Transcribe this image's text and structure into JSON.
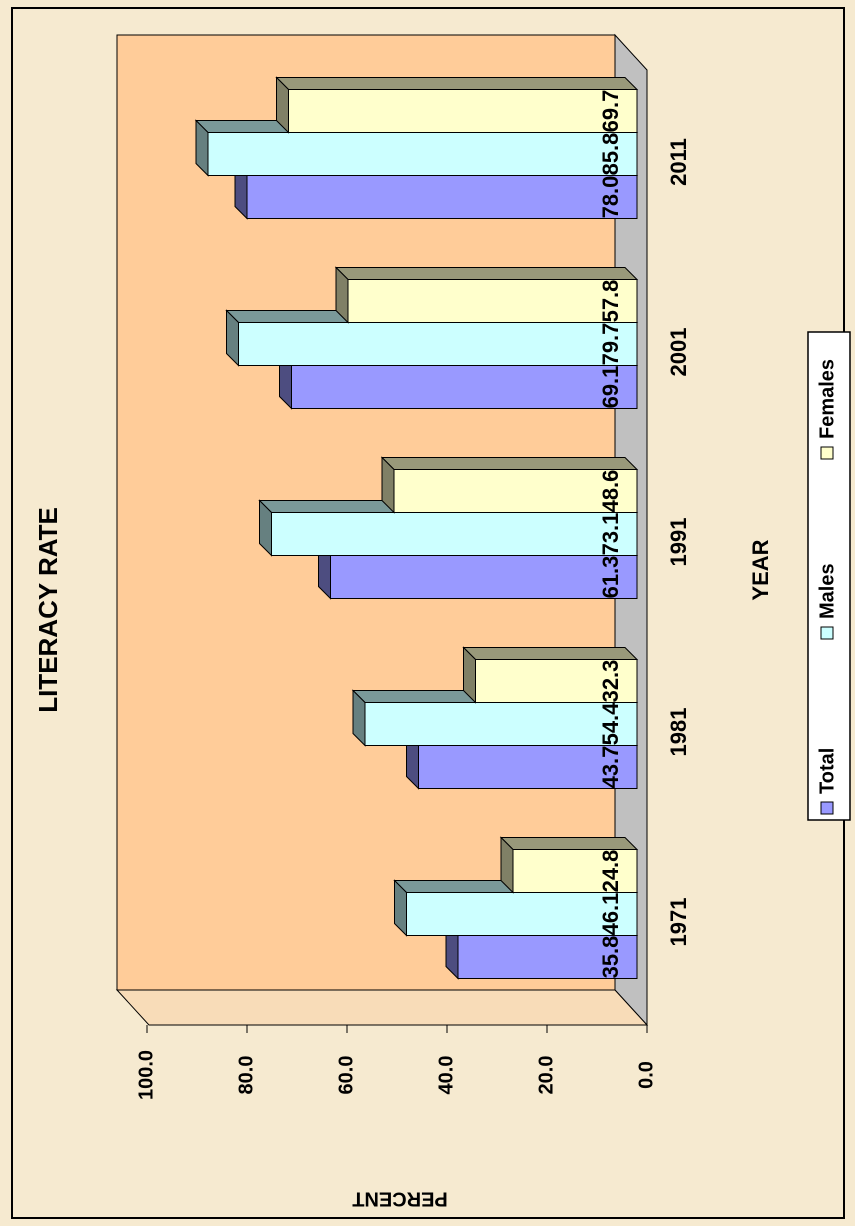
{
  "chart_data": {
    "type": "bar3d_horizontal",
    "title": "LITERACY RATE",
    "x_label": "YEAR",
    "y_label": "PERCENT",
    "categories": [
      "1971",
      "1981",
      "1991",
      "2001",
      "2011"
    ],
    "series": [
      {
        "name": "Total",
        "color": "#9999ff",
        "values": [
          35.8,
          43.7,
          61.3,
          69.1,
          78
        ],
        "value_labels": [
          "35.8",
          "43.7",
          "61.3",
          "69.1",
          "78.0"
        ]
      },
      {
        "name": "Males",
        "color": "#ccffff",
        "values": [
          46.1,
          54.4,
          73.1,
          79.7,
          85.8
        ],
        "value_labels": [
          "46.1",
          "54.4",
          "73.1",
          "79.7",
          "85.8"
        ]
      },
      {
        "name": "Females",
        "color": "#ffffcc",
        "values": [
          24.8,
          32.3,
          48.6,
          57.8,
          69.7
        ],
        "value_labels": [
          "24.8",
          "32.3",
          "48.6",
          "57.8",
          "69.7"
        ]
      }
    ],
    "ylim": [
      0,
      100
    ],
    "yticks": [
      {
        "value": 0,
        "label": "0.0"
      },
      {
        "value": 20,
        "label": "20.0"
      },
      {
        "value": 40,
        "label": "40.0"
      },
      {
        "value": 60,
        "label": "60.0"
      },
      {
        "value": 80,
        "label": "80.0"
      },
      {
        "value": 100,
        "label": "100.0"
      }
    ],
    "legend": "bottom"
  }
}
